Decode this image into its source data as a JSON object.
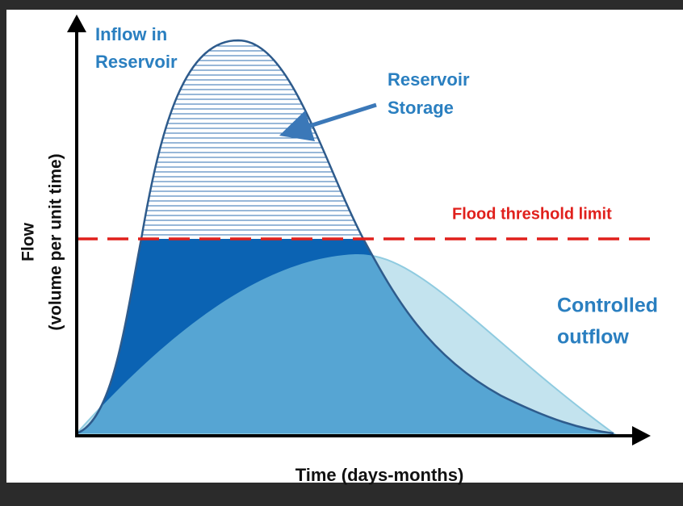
{
  "labels": {
    "inflow": [
      "Inflow in",
      "Reservoir"
    ],
    "storage": [
      "Reservoir",
      "Storage"
    ],
    "threshold": "Flood threshold limit",
    "outflow": [
      "Controlled",
      "outflow"
    ],
    "x_axis": "Time (days-months)",
    "y_axis": [
      "Flow",
      "(volume per unit time)"
    ]
  }
}
